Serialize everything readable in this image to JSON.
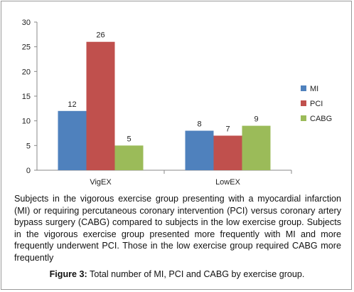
{
  "chart_data": {
    "type": "bar",
    "categories": [
      "VigEX",
      "LowEX"
    ],
    "series": [
      {
        "name": "MI",
        "values": [
          12,
          8
        ],
        "color": "#4f81bd"
      },
      {
        "name": "PCI",
        "values": [
          26,
          7
        ],
        "color": "#c0504d"
      },
      {
        "name": "CABG",
        "values": [
          5,
          9
        ],
        "color": "#9bbb59"
      }
    ],
    "ylim": [
      0,
      30
    ],
    "yticks": [
      0,
      5,
      10,
      15,
      20,
      25,
      30
    ],
    "grid": false,
    "legend": "right"
  },
  "caption": {
    "body": "Subjects in the vigorous exercise group presenting with a myocardial infarction (MI) or requiring percutaneous coronary intervention (PCI) versus coronary artery bypass surgery (CABG) compared to subjects in the low exercise group. Subjects in the vigorous exercise group presented more frequently with MI and more frequently underwent PCI. Those in the low exercise group required CABG more frequently",
    "figure_label": "Figure 3:",
    "figure_title": "Total number of MI, PCI and CABG by exercise group."
  }
}
